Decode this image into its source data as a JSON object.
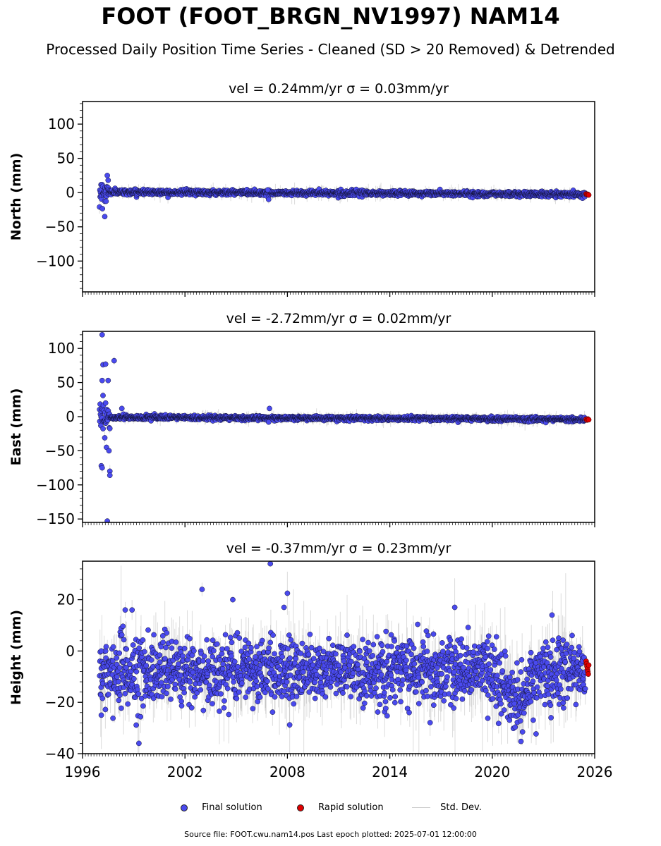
{
  "title": "FOOT (FOOT_BRGN_NV1997) NAM14",
  "subtitle": "Processed Daily Position Time Series - Cleaned (SD > 20 Removed) & Detrended",
  "footer": "Source file: FOOT.cwu.nam14.pos  Last epoch plotted: 2025-07-01 12:00:00",
  "colors": {
    "final": "#4a4aee",
    "rapid": "#e00000",
    "stddev": "#9a9a9a",
    "edge": "#111133"
  },
  "legend": {
    "final": "Final solution",
    "rapid": "Rapid solution",
    "stddev": "Std. Dev."
  },
  "chart_data": [
    {
      "type": "scatter",
      "panel": "north",
      "title": "vel = 0.24mm/yr   σ = 0.03mm/yr",
      "xlabel": "",
      "ylabel": "North (mm)",
      "xlim": [
        1996,
        2026
      ],
      "ylim": [
        -145,
        133
      ],
      "yticks": [
        -100,
        -50,
        0,
        50,
        100
      ],
      "ytick_labels": [
        "−100",
        "−50",
        "0",
        "50",
        "100"
      ],
      "xticks": [
        1996,
        2002,
        2008,
        2014,
        2020,
        2026
      ],
      "grid": false,
      "series": [
        {
          "name": "Final solution",
          "x_range": [
            1997.0,
            2025.45
          ],
          "center_start": 1.0,
          "center_end": -2.5,
          "scatter_sd": 1.8,
          "early_scatter_sd": 8,
          "early_end": 1997.6,
          "errbar_sd": 4,
          "outliers": [
            [
              1997.3,
              -35
            ],
            [
              1997.45,
              25
            ],
            [
              1997.5,
              18
            ],
            [
              2006.9,
              -10
            ],
            [
              2006.85,
              4
            ]
          ]
        },
        {
          "name": "Rapid solution",
          "x_range": [
            2025.5,
            2025.65
          ],
          "values": [
            -2,
            -3,
            -2.5,
            -3.5
          ]
        }
      ]
    },
    {
      "type": "scatter",
      "panel": "east",
      "title": "vel = -2.72mm/yr   σ = 0.02mm/yr",
      "xlabel": "",
      "ylabel": "East (mm)",
      "xlim": [
        1996,
        2026
      ],
      "ylim": [
        -155,
        125
      ],
      "yticks": [
        -150,
        -100,
        -50,
        0,
        50,
        100
      ],
      "ytick_labels": [
        "−150",
        "−100",
        "−50",
        "0",
        "50",
        "100"
      ],
      "xticks": [
        1996,
        2002,
        2008,
        2014,
        2020,
        2026
      ],
      "grid": false,
      "series": [
        {
          "name": "Final solution",
          "x_range": [
            1997.0,
            2025.45
          ],
          "center_start": -1.0,
          "center_end": -4.0,
          "scatter_sd": 1.5,
          "early_scatter_sd": 10,
          "early_end": 1997.6,
          "errbar_sd": 4,
          "outliers": [
            [
              1997.15,
              120
            ],
            [
              1997.2,
              76
            ],
            [
              1997.35,
              77
            ],
            [
              1997.85,
              82
            ],
            [
              1997.15,
              53
            ],
            [
              1997.5,
              53
            ],
            [
              1997.2,
              31
            ],
            [
              1997.35,
              20
            ],
            [
              1998.3,
              12
            ],
            [
              1997.1,
              -72
            ],
            [
              1997.15,
              -75
            ],
            [
              1997.3,
              -31
            ],
            [
              1997.4,
              -45
            ],
            [
              1997.55,
              -50
            ],
            [
              1997.6,
              -80
            ],
            [
              1997.6,
              -86
            ],
            [
              1997.45,
              -153
            ],
            [
              2006.95,
              12
            ],
            [
              2006.9,
              -8
            ]
          ]
        },
        {
          "name": "Rapid solution",
          "x_range": [
            2025.5,
            2025.65
          ],
          "values": [
            -4,
            -5,
            -3.5,
            -4.5
          ]
        }
      ]
    },
    {
      "type": "scatter",
      "panel": "height",
      "title": "vel = -0.37mm/yr   σ = 0.23mm/yr",
      "xlabel": "",
      "ylabel": "Height (mm)",
      "xlim": [
        1996,
        2026
      ],
      "ylim": [
        -40,
        35
      ],
      "yticks": [
        -40,
        -20,
        0,
        20
      ],
      "ytick_labels": [
        "−40",
        "−20",
        "0",
        "20"
      ],
      "xticks": [
        1996,
        2002,
        2008,
        2014,
        2020,
        2026
      ],
      "xtick_labels": [
        "1996",
        "2002",
        "2008",
        "2014",
        "2020",
        "2026"
      ],
      "grid": false,
      "series": [
        {
          "name": "Final solution",
          "x_range": [
            1997.0,
            2025.45
          ],
          "center": -8,
          "scatter_sd": 6.5,
          "dip": [
            2021.5,
            0.8,
            -12
          ],
          "errbar_sd": 8,
          "outliers": [
            [
              1997.1,
              0
            ],
            [
              1997.1,
              -25
            ],
            [
              1998.5,
              16
            ],
            [
              1998.9,
              16
            ],
            [
              2003.0,
              24
            ],
            [
              2004.8,
              20
            ],
            [
              2007.0,
              34
            ],
            [
              2007.8,
              17
            ],
            [
              2008.0,
              22.5
            ],
            [
              1999.3,
              -36
            ],
            [
              2017.8,
              17
            ],
            [
              2023.5,
              14
            ]
          ]
        },
        {
          "name": "Rapid solution",
          "x_range": [
            2025.5,
            2025.65
          ],
          "values": [
            -4,
            -5,
            -6,
            -7,
            -8,
            -9,
            -5.5
          ]
        }
      ]
    }
  ]
}
